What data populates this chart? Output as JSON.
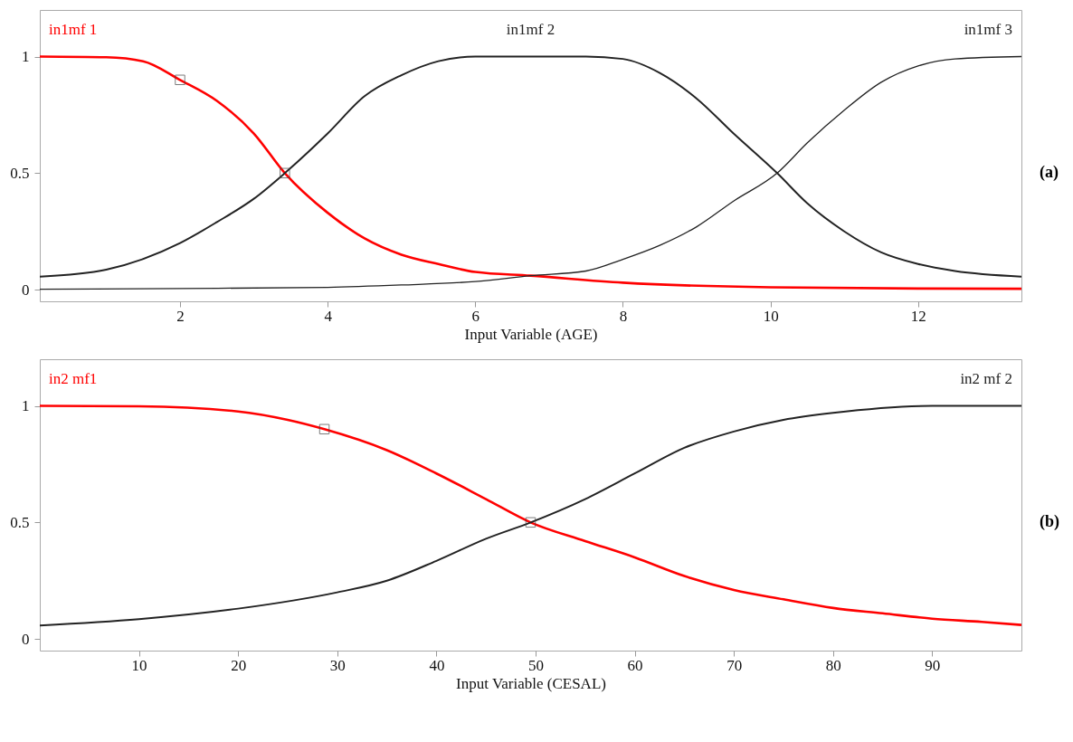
{
  "chart_data": [
    {
      "type": "line",
      "xlabel": "Input Variable (AGE)",
      "xlim": [
        0.1,
        13.4
      ],
      "ylim": [
        -0.05,
        1.2
      ],
      "xticks": [
        2,
        4,
        6,
        8,
        10,
        12
      ],
      "yticks": [
        0,
        0.5,
        1
      ],
      "annotations": [
        "(a)"
      ],
      "series": [
        {
          "name": "in1mf 1",
          "color": "#ff0000",
          "x": [
            0.1,
            1,
            1.5,
            2,
            2.5,
            3,
            3.42,
            4,
            4.5,
            5,
            5.5,
            6,
            6.75,
            8,
            10,
            12,
            13.4
          ],
          "values": [
            1,
            0.997,
            0.98,
            0.9,
            0.81,
            0.67,
            0.5,
            0.33,
            0.22,
            0.15,
            0.11,
            0.076,
            0.06,
            0.03,
            0.01,
            0.005,
            0.004
          ]
        },
        {
          "name": "in1mf 2",
          "color": "#222222",
          "x": [
            0.1,
            1,
            2,
            2.5,
            3,
            3.42,
            4,
            4.5,
            5,
            5.5,
            6,
            6.75,
            7.5,
            8,
            8.5,
            9,
            9.5,
            10.09,
            10.5,
            11,
            11.5,
            12,
            12.5,
            13.4
          ],
          "values": [
            0.056,
            0.086,
            0.2,
            0.29,
            0.39,
            0.5,
            0.67,
            0.83,
            0.92,
            0.98,
            1,
            1,
            1,
            0.99,
            0.93,
            0.82,
            0.67,
            0.5,
            0.37,
            0.25,
            0.16,
            0.11,
            0.08,
            0.056
          ]
        },
        {
          "name": "in1mf 3",
          "color": "#222222",
          "x": [
            0.1,
            2,
            4,
            5,
            6,
            6.75,
            7.5,
            8,
            8.5,
            9,
            9.5,
            10.09,
            10.5,
            11,
            11.5,
            12,
            12.5,
            13.4
          ],
          "values": [
            0.002,
            0.005,
            0.01,
            0.02,
            0.035,
            0.06,
            0.08,
            0.13,
            0.19,
            0.27,
            0.38,
            0.5,
            0.63,
            0.77,
            0.89,
            0.96,
            0.99,
            1
          ]
        },
        {
          "type": "scatter",
          "marker": "square",
          "color": "#444444",
          "x": [
            2,
            3.42
          ],
          "values": [
            0.9,
            0.5
          ]
        }
      ]
    },
    {
      "type": "line",
      "xlabel": "Input Variable (CESAL)",
      "xlim": [
        0,
        99
      ],
      "ylim": [
        -0.05,
        1.2
      ],
      "xticks": [
        10,
        20,
        30,
        40,
        50,
        60,
        70,
        80,
        90
      ],
      "yticks": [
        0,
        0.5,
        1
      ],
      "annotations": [
        "(b)"
      ],
      "series": [
        {
          "name": "in2 mf1",
          "color": "#ff0000",
          "x": [
            0,
            10,
            20,
            25,
            28.7,
            35,
            40,
            45,
            49.5,
            55,
            60,
            65,
            70,
            75,
            80,
            85,
            90,
            95,
            99
          ],
          "values": [
            1,
            0.998,
            0.976,
            0.94,
            0.9,
            0.81,
            0.71,
            0.6,
            0.5,
            0.42,
            0.35,
            0.27,
            0.21,
            0.17,
            0.133,
            0.11,
            0.087,
            0.073,
            0.06
          ]
        },
        {
          "name": "in2 mf 2",
          "color": "#222222",
          "x": [
            0,
            10,
            20,
            30,
            35,
            40,
            45,
            49.5,
            55,
            60,
            65,
            70,
            75,
            80,
            90,
            99
          ],
          "values": [
            0.058,
            0.085,
            0.13,
            0.2,
            0.25,
            0.335,
            0.43,
            0.5,
            0.6,
            0.71,
            0.82,
            0.89,
            0.94,
            0.97,
            1,
            1
          ]
        },
        {
          "type": "scatter",
          "marker": "square",
          "color": "#444444",
          "x": [
            28.7,
            49.5
          ],
          "values": [
            0.9,
            0.5
          ]
        }
      ]
    }
  ]
}
